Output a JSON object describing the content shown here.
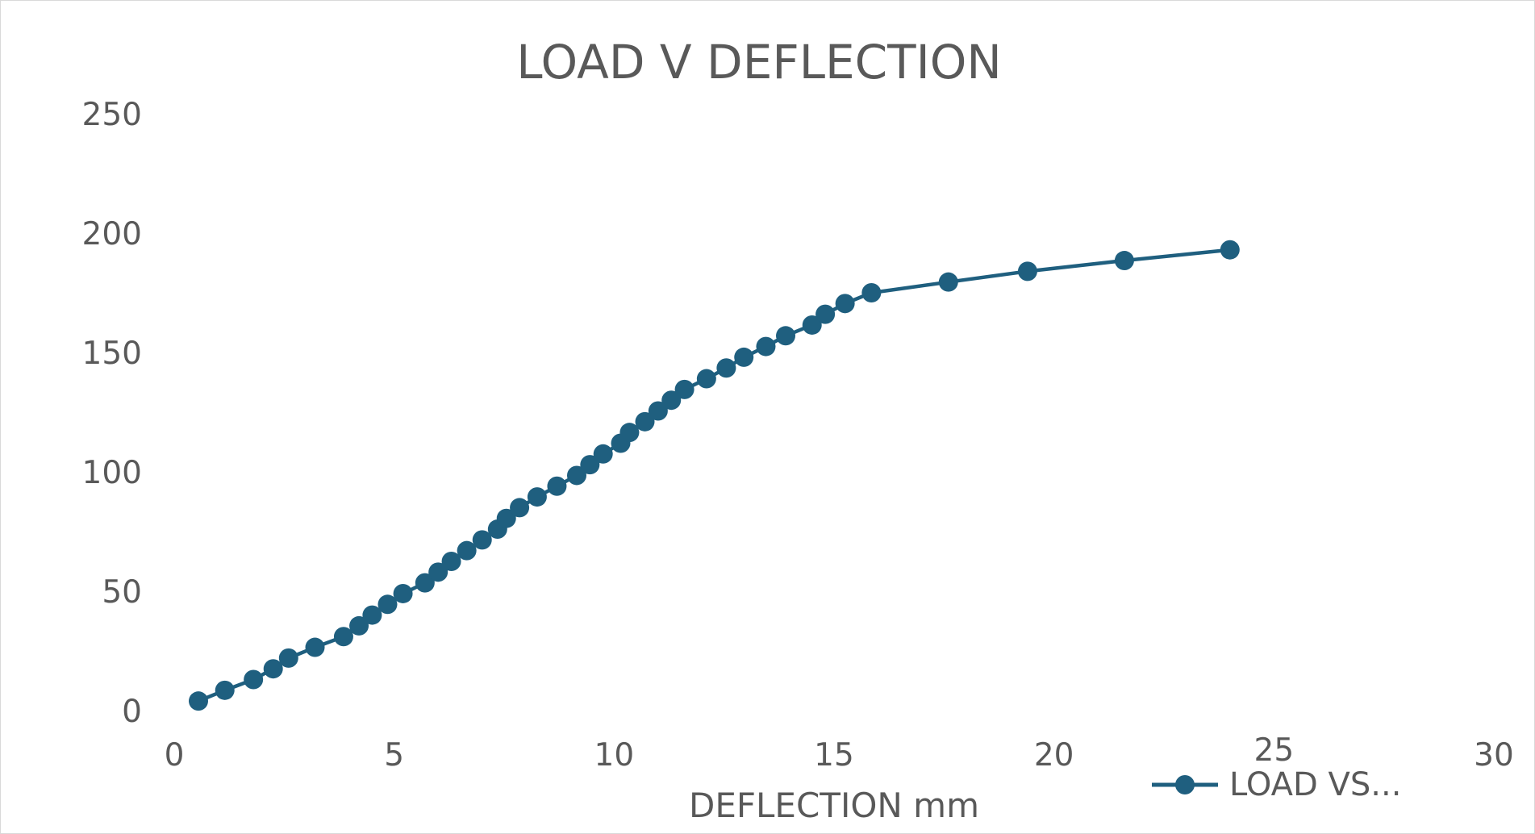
{
  "chart_data": {
    "type": "scatter",
    "title": "LOAD V DEFLECTION",
    "xlabel": "DEFLECTION mm",
    "ylabel": "",
    "xlim": [
      0,
      30
    ],
    "ylim": [
      0,
      250
    ],
    "x_ticks": [
      "0",
      "5",
      "10",
      "15",
      "20",
      "25",
      "30"
    ],
    "y_ticks": [
      "0",
      "50",
      "100",
      "150",
      "200",
      "250"
    ],
    "grid": false,
    "legend_position": "bottom-right",
    "line_color": "#1f5f7f",
    "series": [
      {
        "name": "LOAD VS...",
        "x": [
          0.55,
          1.15,
          1.8,
          2.25,
          2.6,
          3.2,
          3.85,
          4.2,
          4.5,
          4.85,
          5.2,
          5.7,
          6.0,
          6.3,
          6.65,
          7.0,
          7.35,
          7.55,
          7.85,
          8.25,
          8.7,
          9.15,
          9.45,
          9.75,
          10.15,
          10.35,
          10.7,
          11.0,
          11.3,
          11.6,
          12.1,
          12.55,
          12.95,
          13.45,
          13.9,
          14.5,
          14.8,
          15.25,
          15.85,
          17.6,
          19.4,
          21.6,
          24.0
        ],
        "y": [
          4,
          8.5,
          13,
          17.5,
          22,
          26.5,
          31,
          35.5,
          40,
          44.5,
          49,
          53.5,
          58,
          62.5,
          67,
          71.5,
          76,
          80.5,
          85,
          89.5,
          94,
          98.5,
          103,
          107.5,
          112,
          116.5,
          121,
          125.5,
          130,
          134.5,
          139,
          143.5,
          148,
          152.5,
          157,
          161.5,
          166,
          170.5,
          175,
          179.5,
          184,
          188.5,
          193
        ]
      }
    ]
  }
}
